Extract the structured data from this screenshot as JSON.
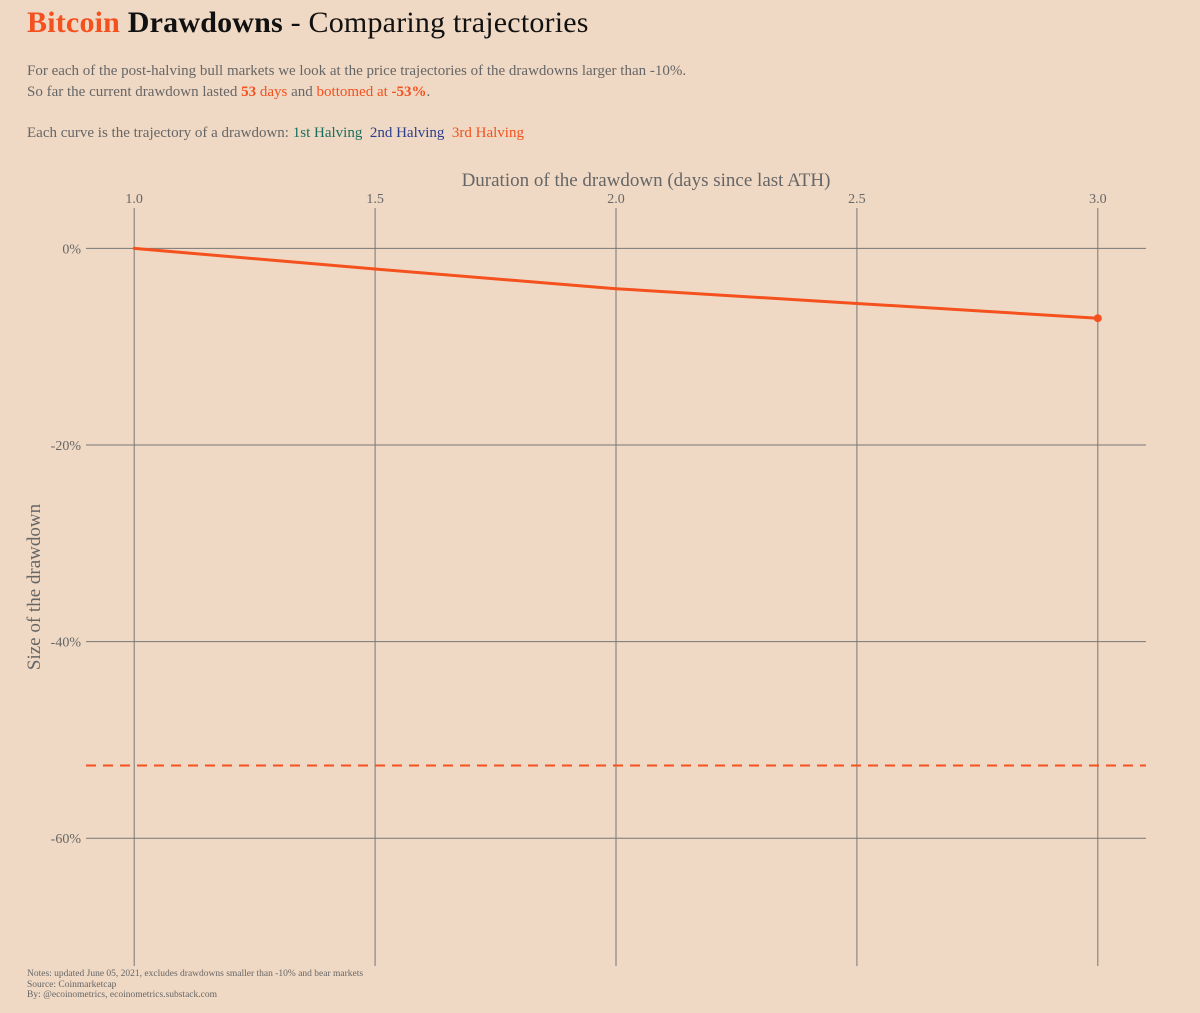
{
  "header": {
    "title_bitcoin": "Bitcoin",
    "title_drawdowns": "Drawdowns",
    "title_rest": " - Comparing trajectories",
    "line1": "For each of the post-halving bull markets we look at the price trajectories of the drawdowns larger than -10%.",
    "line2_prefix": "So far the current drawdown lasted ",
    "line2_days_num": "53",
    "line2_days_word": " days",
    "line2_and": " and ",
    "line2_bottomed": "bottomed at ",
    "line2_pct": "-53%",
    "line2_end": ".",
    "line3_prefix": "Each curve is the trajectory of a drawdown: ",
    "legend_1st": "1st Halving",
    "legend_2nd": "2nd Halving",
    "legend_3rd": "3rd Halving"
  },
  "notes": {
    "line1": "Notes: updated June 05, 2021, excludes drawdowns smaller than -10% and bear markets",
    "line2": "Source: Coinmarketcap",
    "line3": "By: @ecoinometrics, ecoinometrics.substack.com"
  },
  "colors": {
    "accent": "#f4511e",
    "first_halving": "#1a6e5c",
    "second_halving": "#2a3e8c",
    "third_halving": "#f4511e",
    "grid": "#777777",
    "background": "#f0d9c4"
  },
  "chart_data": {
    "type": "line",
    "xlabel": "Duration of the drawdown (days since last ATH)",
    "ylabel": "Size of the drawdown",
    "xlim": [
      0.9,
      3.1
    ],
    "ylim": [
      -73,
      3.5
    ],
    "x_ticks": [
      1.0,
      1.5,
      2.0,
      2.5,
      3.0
    ],
    "x_tick_labels": [
      "1.0",
      "1.5",
      "2.0",
      "2.5",
      "3.0"
    ],
    "y_ticks": [
      0,
      -20,
      -40,
      -60
    ],
    "y_tick_labels": [
      "0%",
      "-20%",
      "-40%",
      "-60%"
    ],
    "x_axis_position": "top",
    "grid": true,
    "series": [
      {
        "halving": "3rd Halving",
        "color": "#f4511e",
        "x": [
          1.0,
          1.5,
          2.0,
          2.5,
          3.0
        ],
        "y": [
          0,
          -2.1,
          -4.1,
          -5.6,
          -7.1
        ],
        "end_marker": true
      }
    ],
    "reference_lines": [
      {
        "orientation": "horizontal",
        "y": -52.6,
        "style": "dashed",
        "color": "#f4511e"
      }
    ]
  }
}
